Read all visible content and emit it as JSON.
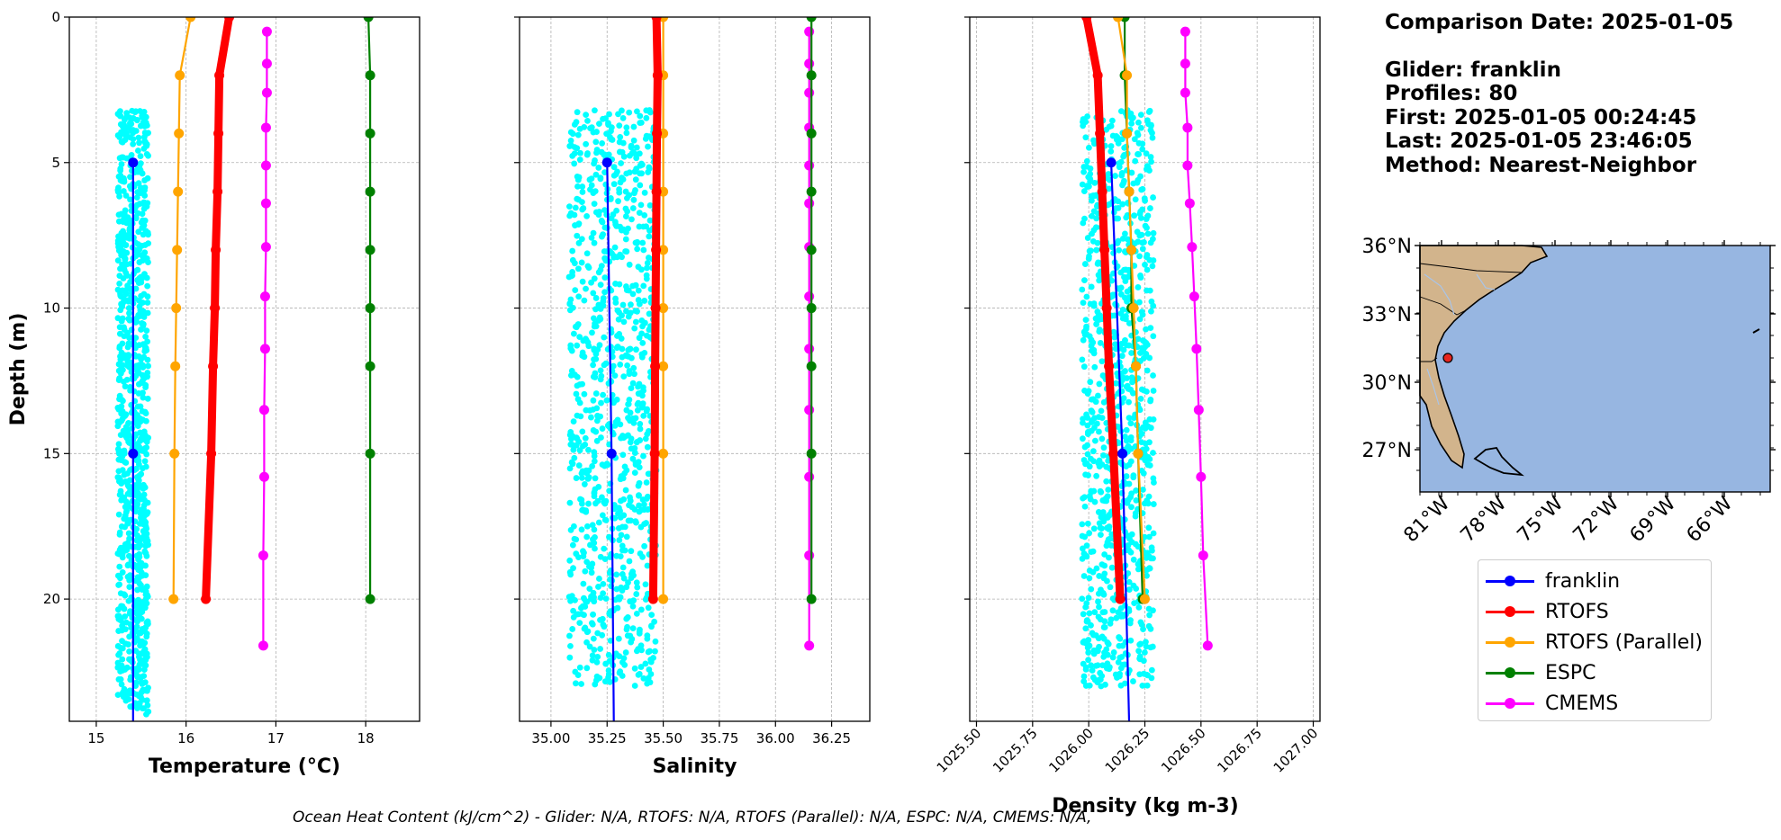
{
  "chart_data": [
    {
      "type": "scatter",
      "title": "",
      "xlabel": "Temperature (°C)",
      "ylabel": "Depth (m)",
      "xlim": [
        14.7,
        18.6
      ],
      "ylim": [
        24.2,
        0
      ],
      "xticks": [
        "15",
        "16",
        "17",
        "18"
      ],
      "yticks": [
        "0",
        "5",
        "10",
        "15",
        "20"
      ],
      "grid": true,
      "series": [
        {
          "name": "franklin",
          "color": "#0000ff",
          "depth": [
            5,
            15,
            24.2
          ],
          "values": [
            15.41,
            15.41,
            15.41
          ],
          "marker_count": 2
        },
        {
          "name": "RTOFS",
          "color": "#ff0000",
          "depth": [
            0,
            2,
            4,
            6,
            8,
            10,
            12,
            15,
            20
          ],
          "values": [
            16.48,
            16.37,
            16.36,
            16.35,
            16.33,
            16.32,
            16.3,
            16.28,
            16.22
          ]
        },
        {
          "name": "RTOFS (Parallel)",
          "color": "#ffa500",
          "depth": [
            0,
            2,
            4,
            6,
            8,
            10,
            12,
            15,
            20
          ],
          "values": [
            16.05,
            15.93,
            15.92,
            15.91,
            15.9,
            15.89,
            15.88,
            15.87,
            15.86
          ]
        },
        {
          "name": "ESPC",
          "color": "#008000",
          "depth": [
            0,
            2,
            4,
            6,
            8,
            10,
            12,
            15,
            20
          ],
          "values": [
            18.03,
            18.05,
            18.05,
            18.05,
            18.05,
            18.05,
            18.05,
            18.05,
            18.05
          ]
        },
        {
          "name": "CMEMS",
          "color": "#ff00ff",
          "depth": [
            0.5,
            1.6,
            2.6,
            3.8,
            5.1,
            6.4,
            7.9,
            9.6,
            11.4,
            13.5,
            15.8,
            18.5,
            21.6
          ],
          "values": [
            16.9,
            16.9,
            16.9,
            16.89,
            16.89,
            16.89,
            16.89,
            16.88,
            16.88,
            16.87,
            16.87,
            16.86,
            16.86
          ]
        }
      ],
      "scatter": {
        "color": "#00ffff",
        "x_range": [
          15.24,
          15.58
        ],
        "depth_range": [
          3.2,
          24
        ],
        "count": 900
      }
    },
    {
      "type": "scatter",
      "title": "",
      "xlabel": "Salinity",
      "ylabel": "",
      "xlim": [
        34.86,
        36.42
      ],
      "ylim": [
        24.2,
        0
      ],
      "xticks": [
        "35.00",
        "35.25",
        "35.50",
        "35.75",
        "36.00",
        "36.25"
      ],
      "grid": true,
      "series": [
        {
          "name": "franklin",
          "color": "#0000ff",
          "depth": [
            5,
            15,
            24.2
          ],
          "values": [
            35.25,
            35.27,
            35.28
          ],
          "marker_count": 2
        },
        {
          "name": "RTOFS",
          "color": "#ff0000",
          "depth": [
            0,
            2,
            4,
            6,
            8,
            10,
            12,
            15,
            20
          ],
          "values": [
            35.47,
            35.475,
            35.472,
            35.47,
            35.468,
            35.466,
            35.464,
            35.462,
            35.455
          ]
        },
        {
          "name": "RTOFS (Parallel)",
          "color": "#ffa500",
          "depth": [
            0,
            2,
            4,
            6,
            8,
            10,
            12,
            15,
            20
          ],
          "values": [
            35.5,
            35.5,
            35.5,
            35.5,
            35.5,
            35.5,
            35.5,
            35.5,
            35.5
          ]
        },
        {
          "name": "ESPC",
          "color": "#008000",
          "depth": [
            0,
            2,
            4,
            6,
            8,
            10,
            12,
            15,
            20
          ],
          "values": [
            36.16,
            36.16,
            36.16,
            36.16,
            36.16,
            36.16,
            36.16,
            36.16,
            36.16
          ]
        },
        {
          "name": "CMEMS",
          "color": "#ff00ff",
          "depth": [
            0.5,
            1.6,
            2.6,
            3.8,
            5.1,
            6.4,
            7.9,
            9.6,
            11.4,
            13.5,
            15.8,
            18.5,
            21.6
          ],
          "values": [
            36.15,
            36.15,
            36.15,
            36.15,
            36.15,
            36.15,
            36.15,
            36.15,
            36.15,
            36.15,
            36.15,
            36.15,
            36.15
          ]
        }
      ],
      "scatter": {
        "color": "#00ffff",
        "x_range": [
          35.08,
          35.47
        ],
        "depth_range": [
          3.2,
          23
        ],
        "count": 900
      }
    },
    {
      "type": "scatter",
      "title": "",
      "xlabel": "Density (kg m-3)",
      "ylabel": "",
      "xlim": [
        1025.47,
        1027.03
      ],
      "ylim": [
        24.2,
        0
      ],
      "xticks": [
        "1025.50",
        "1025.75",
        "1026.00",
        "1026.25",
        "1026.50",
        "1026.75",
        "1027.00"
      ],
      "grid": true,
      "series": [
        {
          "name": "franklin",
          "color": "#0000ff",
          "depth": [
            5,
            15,
            24.2
          ],
          "values": [
            1026.1,
            1026.15,
            1026.18
          ],
          "marker_count": 2
        },
        {
          "name": "RTOFS",
          "color": "#ff0000",
          "depth": [
            0,
            2,
            4,
            6,
            8,
            10,
            12,
            15,
            20
          ],
          "values": [
            1025.99,
            1026.04,
            1026.05,
            1026.06,
            1026.07,
            1026.08,
            1026.09,
            1026.11,
            1026.14
          ]
        },
        {
          "name": "RTOFS (Parallel)",
          "color": "#ffa500",
          "depth": [
            0,
            2,
            4,
            6,
            8,
            10,
            12,
            15,
            20
          ],
          "values": [
            1026.13,
            1026.17,
            1026.17,
            1026.18,
            1026.19,
            1026.2,
            1026.21,
            1026.22,
            1026.25
          ]
        },
        {
          "name": "ESPC",
          "color": "#008000",
          "depth": [
            0,
            2,
            4,
            6,
            8,
            10,
            12,
            15,
            20
          ],
          "values": [
            1026.16,
            1026.16,
            1026.17,
            1026.18,
            1026.19,
            1026.19,
            1026.21,
            1026.22,
            1026.24
          ]
        },
        {
          "name": "CMEMS",
          "color": "#ff00ff",
          "depth": [
            0.5,
            1.6,
            2.6,
            3.8,
            5.1,
            6.4,
            7.9,
            9.6,
            11.4,
            13.5,
            15.8,
            18.5,
            21.6
          ],
          "values": [
            1026.43,
            1026.43,
            1026.43,
            1026.44,
            1026.44,
            1026.45,
            1026.46,
            1026.47,
            1026.48,
            1026.49,
            1026.5,
            1026.51,
            1026.53
          ]
        }
      ],
      "scatter": {
        "color": "#00ffff",
        "x_range": [
          1025.97,
          1026.29
        ],
        "depth_range": [
          3.2,
          23
        ],
        "count": 900
      }
    },
    {
      "type": "map",
      "lat_labels": [
        "36°N",
        "33°N",
        "30°N",
        "27°N"
      ],
      "lon_labels": [
        "81°W",
        "78°W",
        "75°W",
        "72°W",
        "69°W",
        "66°W"
      ],
      "land_color": "#d2b48c",
      "ocean_color": "#97b6e1",
      "marker": {
        "color": "#e8261f"
      }
    }
  ],
  "info": {
    "date": "Comparison Date: 2025-01-05",
    "glider": "Glider: franklin",
    "profiles": "Profiles: 80",
    "first": "First: 2025-01-05 00:24:45",
    "last": "Last: 2025-01-05 23:46:05",
    "method": "Method: Nearest-Neighbor"
  },
  "legend": [
    {
      "name": "franklin",
      "color": "#0000ff"
    },
    {
      "name": "RTOFS",
      "color": "#ff0000"
    },
    {
      "name": "RTOFS (Parallel)",
      "color": "#ffa500"
    },
    {
      "name": "ESPC",
      "color": "#008000"
    },
    {
      "name": "CMEMS",
      "color": "#ff00ff"
    }
  ],
  "footer": "Ocean Heat Content (kJ/cm^2) - Glider: N/A,  RTOFS: N/A,  RTOFS (Parallel): N/A,  ESPC: N/A,  CMEMS: N/A,"
}
